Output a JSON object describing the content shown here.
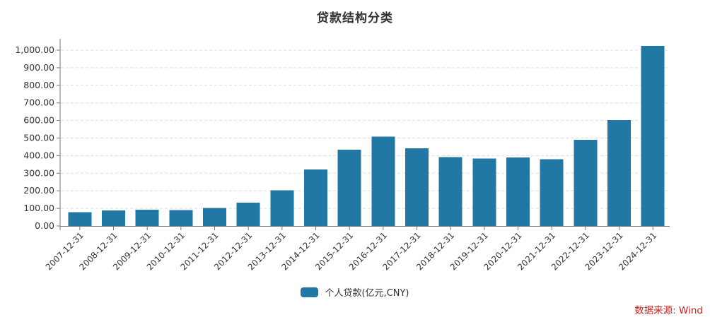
{
  "title": "贷款结构分类",
  "source_note": "数据来源: Wind",
  "legend": {
    "label": "个人贷款(亿元,CNY)"
  },
  "colors": {
    "bar": "#2278A5",
    "axis": "#777777",
    "grid": "#DDDDDD",
    "tick_label": "#333333",
    "title": "#333333",
    "source": "#CC2222",
    "background": "#FFFFFF"
  },
  "chart_data": {
    "type": "bar",
    "title": "贷款结构分类",
    "categories": [
      "2007-12-31",
      "2008-12-31",
      "2009-12-31",
      "2010-12-31",
      "2011-12-31",
      "2012-12-31",
      "2013-12-31",
      "2014-12-31",
      "2015-12-31",
      "2016-12-31",
      "2017-12-31",
      "2018-12-31",
      "2019-12-31",
      "2020-12-31",
      "2021-12-31",
      "2022-12-31",
      "2023-12-31",
      "2024-12-31"
    ],
    "series": [
      {
        "name": "个人贷款(亿元,CNY)",
        "values": [
          78,
          88,
          93,
          90,
          102,
          133,
          203,
          321,
          434,
          508,
          442,
          392,
          384,
          390,
          379,
          490,
          603,
          1025
        ]
      }
    ],
    "xlabel": "",
    "ylabel": "",
    "ylim": [
      0,
      1000
    ],
    "y_tick_interval": 100,
    "y_tick_labels": [
      "0.00",
      "100.00",
      "200.00",
      "300.00",
      "400.00",
      "500.00",
      "600.00",
      "700.00",
      "800.00",
      "900.00",
      "1,000.00"
    ],
    "grid": true,
    "grid_style": "dashed",
    "legend_position": "bottom",
    "x_tick_rotation": -45
  }
}
